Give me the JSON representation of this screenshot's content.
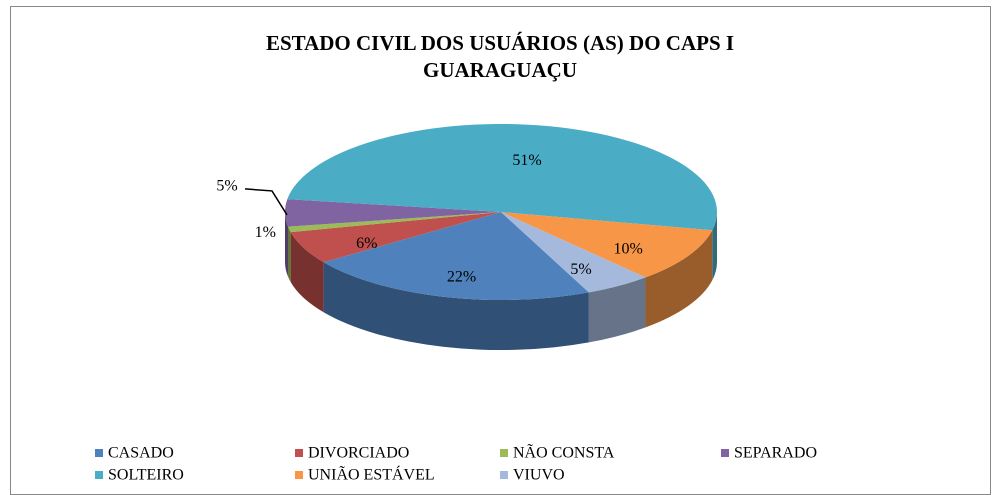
{
  "chart_data": {
    "type": "pie3d",
    "title": "ESTADO CIVIL DOS USUÁRIOS (AS) DO CAPS I GUARAGUAÇU",
    "categories": [
      "CASADO",
      "DIVORCIADO",
      "NÃO CONSTA",
      "SEPARADO",
      "SOLTEIRO",
      "UNIÃO ESTÁVEL",
      "VIUVO"
    ],
    "values": [
      22,
      6,
      1,
      5,
      51,
      10,
      5
    ],
    "value_labels": [
      "22%",
      "6%",
      "1%",
      "5%",
      "51%",
      "10%",
      "5%"
    ],
    "colors": [
      "#4f81bd",
      "#c0504d",
      "#9bbb59",
      "#8064a2",
      "#4bacc6",
      "#f79646",
      "#a5b9dd"
    ],
    "legend": "bottom"
  }
}
